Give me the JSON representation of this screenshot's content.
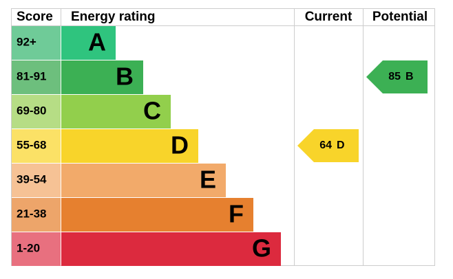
{
  "header": {
    "score": "Score",
    "rating": "Energy rating",
    "current": "Current",
    "potential": "Potential"
  },
  "bands": [
    {
      "score": "92+",
      "letter": "A",
      "color": "#2fc47e",
      "score_color": "#6fcb98"
    },
    {
      "score": "81-91",
      "letter": "B",
      "color": "#3cb054",
      "score_color": "#6dbf7d"
    },
    {
      "score": "69-80",
      "letter": "C",
      "color": "#92cf4c",
      "score_color": "#b6dd85"
    },
    {
      "score": "55-68",
      "letter": "D",
      "color": "#f8d42a",
      "score_color": "#fbe166"
    },
    {
      "score": "39-54",
      "letter": "E",
      "color": "#f2aa6a",
      "score_color": "#f6c295"
    },
    {
      "score": "21-38",
      "letter": "F",
      "color": "#e6802f",
      "score_color": "#eda56a"
    },
    {
      "score": "1-20",
      "letter": "G",
      "color": "#dc2a3e",
      "score_color": "#e8707f"
    }
  ],
  "current": {
    "value": 64,
    "letter": "D"
  },
  "potential": {
    "value": 85,
    "letter": "B"
  }
}
